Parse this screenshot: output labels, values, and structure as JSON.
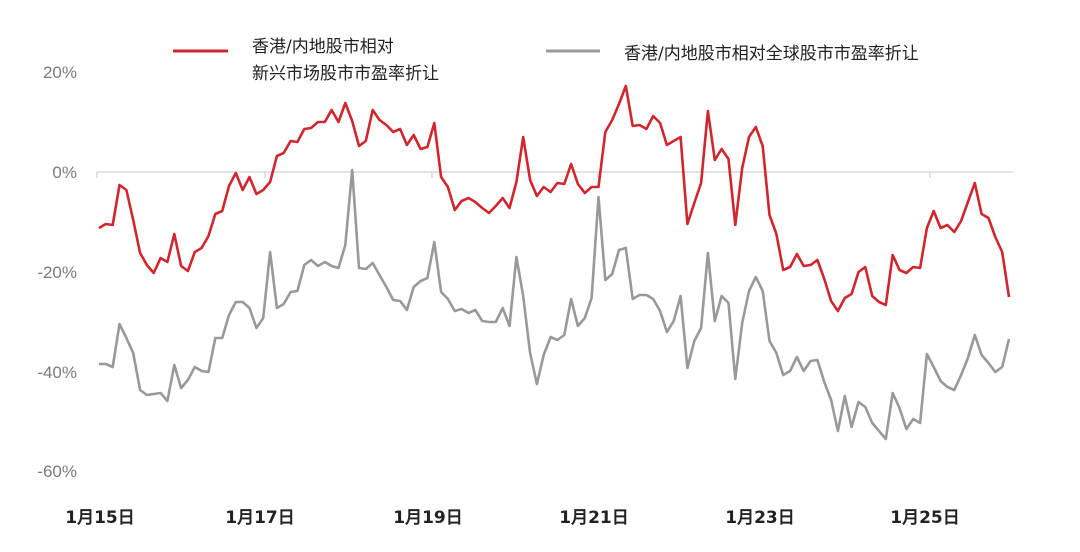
{
  "chart_data": {
    "type": "line",
    "title": "",
    "xlabel": "",
    "ylabel": "",
    "ylim": [
      -60,
      20
    ],
    "yticks": [
      "20%",
      "0%",
      "-20%",
      "-40%",
      "-60%"
    ],
    "ytick_values": [
      20,
      0,
      -20,
      -40,
      -60
    ],
    "x_tick_labels": [
      "1月15日",
      "1月17日",
      "1月19日",
      "1月21日",
      "1月23日",
      "1月25日"
    ],
    "grid": false,
    "zero_line": true,
    "legend_position": "top",
    "series": [
      {
        "name": "香港/内地股市相对新兴市场股市市盈率折让",
        "legend_lines": [
          "香港/内地股市相对",
          "新兴市场股市市盈率折让"
        ],
        "color": "#d0262d",
        "values": [
          -11.2,
          -10.4,
          -10.6,
          -2.6,
          -3.6,
          -9.6,
          -16.2,
          -18.6,
          -20.2,
          -17.2,
          -18.0,
          -12.4,
          -18.8,
          -19.8,
          -16.0,
          -15.2,
          -12.8,
          -8.4,
          -7.8,
          -2.8,
          -0.2,
          -3.6,
          -1.0,
          -4.4,
          -3.6,
          -2.0,
          3.2,
          3.8,
          6.2,
          6.0,
          8.6,
          8.8,
          10.0,
          10.0,
          12.4,
          10.0,
          13.8,
          10.2,
          5.2,
          6.2,
          12.4,
          10.4,
          9.4,
          8.0,
          8.6,
          5.4,
          7.4,
          4.6,
          5.0,
          9.8,
          -1.0,
          -3.0,
          -7.6,
          -5.8,
          -5.2,
          -6.0,
          -7.2,
          -8.2,
          -6.8,
          -5.2,
          -7.2,
          -2.0,
          7.0,
          -1.6,
          -4.8,
          -3.0,
          -4.0,
          -2.2,
          -2.4,
          1.6,
          -2.4,
          -4.2,
          -3.0,
          -3.0,
          8.0,
          10.4,
          13.6,
          17.2,
          9.2,
          9.4,
          8.6,
          11.2,
          9.8,
          5.4,
          6.2,
          7.0,
          -10.4,
          -6.2,
          -2.2,
          12.2,
          2.4,
          4.6,
          2.6,
          -10.6,
          0.8,
          7.0,
          9.0,
          5.2,
          -8.6,
          -12.4,
          -19.6,
          -19.0,
          -16.4,
          -18.8,
          -18.6,
          -17.6,
          -21.4,
          -25.8,
          -27.8,
          -25.2,
          -24.4,
          -20.0,
          -19.0,
          -24.8,
          -26.0,
          -26.6,
          -16.6,
          -19.6,
          -20.2,
          -19.0,
          -19.2,
          -11.2,
          -7.8,
          -11.2,
          -10.6,
          -12.0,
          -9.8,
          -6.0,
          -2.2,
          -8.4,
          -9.2,
          -13.0,
          -16.0,
          -25.0
        ]
      },
      {
        "name": "香港/内地股市相对全球股市市盈率折让",
        "legend_lines": [
          "香港/内地股市相对全球股市市盈率折让"
        ],
        "color": "#999999",
        "values": [
          -38.4,
          -38.4,
          -39.0,
          -30.4,
          -33.2,
          -36.2,
          -43.6,
          -44.6,
          -44.4,
          -44.2,
          -45.8,
          -38.6,
          -43.2,
          -41.6,
          -39.0,
          -39.8,
          -40.0,
          -33.2,
          -33.2,
          -28.6,
          -26.0,
          -26.0,
          -27.2,
          -31.2,
          -29.2,
          -16.0,
          -27.2,
          -26.4,
          -24.0,
          -23.8,
          -18.6,
          -17.6,
          -18.8,
          -18.0,
          -18.8,
          -19.2,
          -14.6,
          0.4,
          -19.2,
          -19.4,
          -18.2,
          -20.6,
          -23.0,
          -25.6,
          -25.8,
          -27.6,
          -23.0,
          -21.8,
          -21.2,
          -14.0,
          -24.0,
          -25.4,
          -27.8,
          -27.4,
          -28.2,
          -27.6,
          -29.8,
          -30.0,
          -30.0,
          -27.2,
          -30.8,
          -17.0,
          -24.8,
          -36.2,
          -42.4,
          -36.6,
          -33.0,
          -33.6,
          -32.6,
          -25.4,
          -30.8,
          -29.2,
          -25.2,
          -5.0,
          -21.6,
          -20.4,
          -15.6,
          -15.2,
          -25.4,
          -24.6,
          -24.6,
          -25.4,
          -27.8,
          -32.0,
          -29.8,
          -24.8,
          -39.2,
          -33.8,
          -31.2,
          -16.2,
          -29.8,
          -24.8,
          -26.2,
          -41.4,
          -30.2,
          -23.8,
          -21.0,
          -23.8,
          -33.8,
          -36.2,
          -40.6,
          -39.8,
          -37.0,
          -39.8,
          -37.8,
          -37.6,
          -42.0,
          -45.6,
          -51.8,
          -44.8,
          -51.0,
          -46.0,
          -47.0,
          -50.2,
          -51.8,
          -53.4,
          -44.2,
          -47.2,
          -51.4,
          -49.4,
          -50.2,
          -36.4,
          -39.0,
          -41.8,
          -43.0,
          -43.6,
          -40.6,
          -37.2,
          -32.6,
          -36.6,
          -38.2,
          -40.0,
          -39.0,
          -33.4
        ]
      }
    ]
  },
  "legend": {
    "red_line_1": "香港/内地股市相对",
    "red_line_2": "新兴市场股市市盈率折让",
    "gray_line_1": "香港/内地股市相对全球股市市盈率折让"
  },
  "axis": {
    "y": [
      "20%",
      "0%",
      "-20%",
      "-40%",
      "-60%"
    ],
    "x": [
      "1月15日",
      "1月17日",
      "1月19日",
      "1月21日",
      "1月23日",
      "1月25日"
    ]
  }
}
